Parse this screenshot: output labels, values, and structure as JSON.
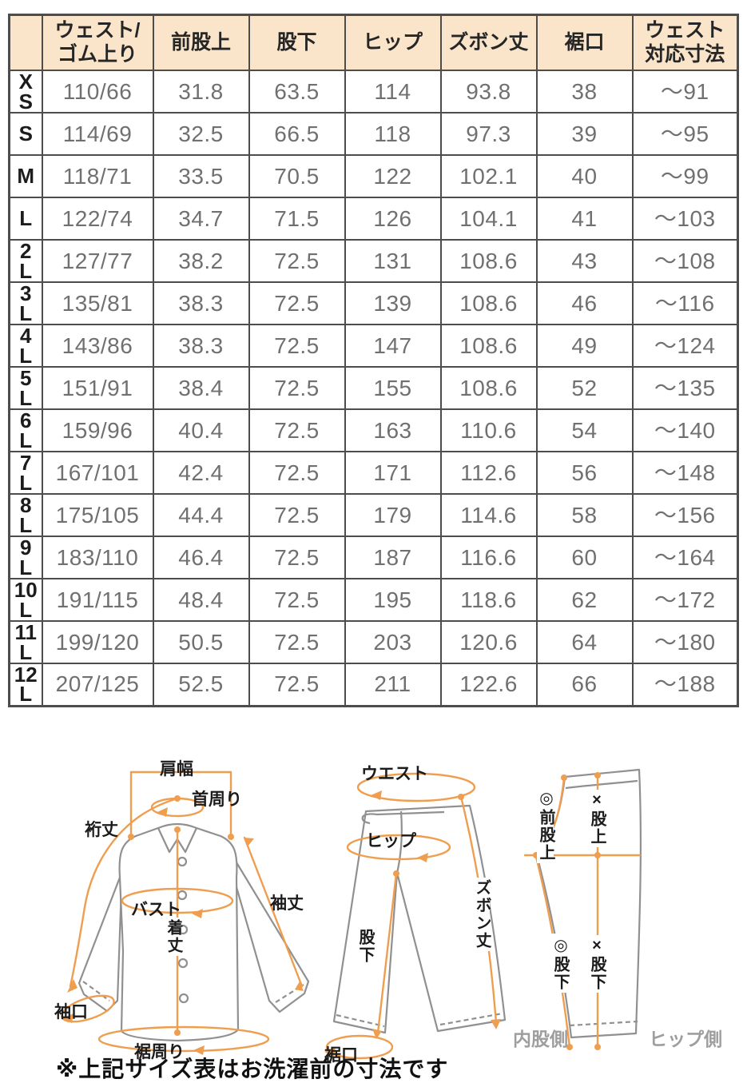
{
  "table": {
    "headers": [
      "",
      "ウェスト/\nゴム上り",
      "前股上",
      "股下",
      "ヒップ",
      "ズボン丈",
      "裾口",
      "ウェスト\n対応寸法"
    ],
    "rows": [
      {
        "size": "X\nS",
        "cells": [
          "110/66",
          "31.8",
          "63.5",
          "114",
          "93.8",
          "38",
          "〜91"
        ]
      },
      {
        "size": "S",
        "cells": [
          "114/69",
          "32.5",
          "66.5",
          "118",
          "97.3",
          "39",
          "〜95"
        ]
      },
      {
        "size": "M",
        "cells": [
          "118/71",
          "33.5",
          "70.5",
          "122",
          "102.1",
          "40",
          "〜99"
        ]
      },
      {
        "size": "L",
        "cells": [
          "122/74",
          "34.7",
          "71.5",
          "126",
          "104.1",
          "41",
          "〜103"
        ]
      },
      {
        "size": "2\nL",
        "cells": [
          "127/77",
          "38.2",
          "72.5",
          "131",
          "108.6",
          "43",
          "〜108"
        ]
      },
      {
        "size": "3\nL",
        "cells": [
          "135/81",
          "38.3",
          "72.5",
          "139",
          "108.6",
          "46",
          "〜116"
        ]
      },
      {
        "size": "4\nL",
        "cells": [
          "143/86",
          "38.3",
          "72.5",
          "147",
          "108.6",
          "49",
          "〜124"
        ]
      },
      {
        "size": "5\nL",
        "cells": [
          "151/91",
          "38.4",
          "72.5",
          "155",
          "108.6",
          "52",
          "〜135"
        ]
      },
      {
        "size": "6\nL",
        "cells": [
          "159/96",
          "40.4",
          "72.5",
          "163",
          "110.6",
          "54",
          "〜140"
        ]
      },
      {
        "size": "7\nL",
        "cells": [
          "167/101",
          "42.4",
          "72.5",
          "171",
          "112.6",
          "56",
          "〜148"
        ]
      },
      {
        "size": "8\nL",
        "cells": [
          "175/105",
          "44.4",
          "72.5",
          "179",
          "114.6",
          "58",
          "〜156"
        ]
      },
      {
        "size": "9\nL",
        "cells": [
          "183/110",
          "46.4",
          "72.5",
          "187",
          "116.6",
          "60",
          "〜164"
        ]
      },
      {
        "size": "10\nL",
        "cells": [
          "191/115",
          "48.4",
          "72.5",
          "195",
          "118.6",
          "62",
          "〜172"
        ]
      },
      {
        "size": "11\nL",
        "cells": [
          "199/120",
          "50.5",
          "72.5",
          "203",
          "120.6",
          "64",
          "〜180"
        ]
      },
      {
        "size": "12\nL",
        "cells": [
          "207/125",
          "52.5",
          "72.5",
          "211",
          "122.6",
          "66",
          "〜188"
        ]
      }
    ]
  },
  "chart_data": {
    "type": "table",
    "columns": [
      "",
      "ウェスト/ゴム上り",
      "前股上",
      "股下",
      "ヒップ",
      "ズボン丈",
      "裾口",
      "ウェスト対応寸法"
    ],
    "rows": [
      [
        "XS",
        "110/66",
        31.8,
        63.5,
        114,
        93.8,
        38,
        "〜91"
      ],
      [
        "S",
        "114/69",
        32.5,
        66.5,
        118,
        97.3,
        39,
        "〜95"
      ],
      [
        "M",
        "118/71",
        33.5,
        70.5,
        122,
        102.1,
        40,
        "〜99"
      ],
      [
        "L",
        "122/74",
        34.7,
        71.5,
        126,
        104.1,
        41,
        "〜103"
      ],
      [
        "2L",
        "127/77",
        38.2,
        72.5,
        131,
        108.6,
        43,
        "〜108"
      ],
      [
        "3L",
        "135/81",
        38.3,
        72.5,
        139,
        108.6,
        46,
        "〜116"
      ],
      [
        "4L",
        "143/86",
        38.3,
        72.5,
        147,
        108.6,
        49,
        "〜124"
      ],
      [
        "5L",
        "151/91",
        38.4,
        72.5,
        155,
        108.6,
        52,
        "〜135"
      ],
      [
        "6L",
        "159/96",
        40.4,
        72.5,
        163,
        110.6,
        54,
        "〜140"
      ],
      [
        "7L",
        "167/101",
        42.4,
        72.5,
        171,
        112.6,
        56,
        "〜148"
      ],
      [
        "8L",
        "175/105",
        44.4,
        72.5,
        179,
        114.6,
        58,
        "〜156"
      ],
      [
        "9L",
        "183/110",
        46.4,
        72.5,
        187,
        116.6,
        60,
        "〜164"
      ],
      [
        "10L",
        "191/115",
        48.4,
        72.5,
        195,
        118.6,
        62,
        "〜172"
      ],
      [
        "11L",
        "199/120",
        50.5,
        72.5,
        203,
        120.6,
        64,
        "〜180"
      ],
      [
        "12L",
        "207/125",
        52.5,
        72.5,
        211,
        122.6,
        66,
        "〜188"
      ]
    ]
  },
  "diagrams": {
    "shirt": {
      "labels": {
        "shoulder_width": "肩幅",
        "neck": "首周り",
        "yuki": "裄丈",
        "sleeve": "袖丈",
        "bust": "バスト",
        "length": "着丈",
        "cuff": "袖口",
        "hem": "裾周り"
      }
    },
    "pants_front": {
      "labels": {
        "waist": "ウエスト",
        "hip": "ヒップ",
        "length": "ズボン丈",
        "inseam": "股下",
        "hem": "裾口"
      }
    },
    "pants_side": {
      "labels": {
        "front_rise": "◎前股上",
        "rise": "×股上",
        "inseam_inner": "◎股下",
        "inseam_hip": "×股下",
        "inner_side": "内股側",
        "hip_side": "ヒップ側"
      }
    }
  },
  "note": "※上記サイズ表はお洗濯前の寸法です",
  "colors": {
    "accent_orange": "#ef9e4f",
    "header_bg": "#fae5ca",
    "table_border": "#4d4d4d",
    "value_text": "#707070",
    "garment_outline": "#909090",
    "side_label_gray": "#9e9e9e"
  }
}
